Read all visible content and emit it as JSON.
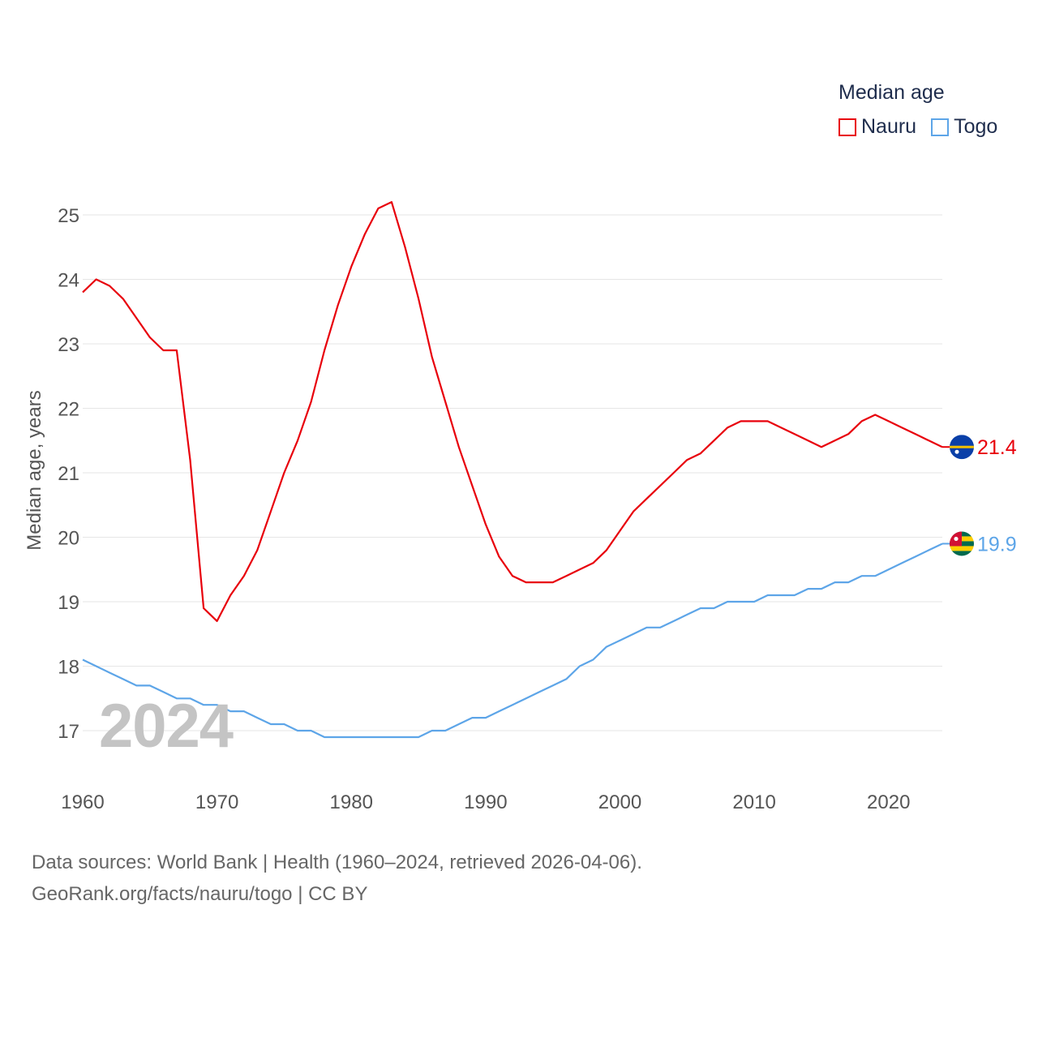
{
  "legend": {
    "title": "Median age",
    "items": [
      {
        "label": "Nauru",
        "color": "#e8000b"
      },
      {
        "label": "Togo",
        "color": "#5da5e8"
      }
    ]
  },
  "watermark_year": "2024",
  "footer": {
    "line1": "Data sources: World Bank | Health (1960–2024, retrieved 2026-04-06).",
    "line2": "GeoRank.org/facts/nauru/togo | CC BY"
  },
  "chart_data": {
    "type": "line",
    "title": "Median age",
    "xlabel": "",
    "ylabel": "Median age, years",
    "xlim": [
      1960,
      2024
    ],
    "ylim": [
      16.2,
      25.6
    ],
    "x_ticks": [
      1960,
      1970,
      1980,
      1990,
      2000,
      2010,
      2020
    ],
    "y_ticks": [
      17,
      18,
      19,
      20,
      21,
      22,
      23,
      24,
      25
    ],
    "grid": true,
    "legend_position": "top-right",
    "x": [
      1960,
      1961,
      1962,
      1963,
      1964,
      1965,
      1966,
      1967,
      1968,
      1969,
      1970,
      1971,
      1972,
      1973,
      1974,
      1975,
      1976,
      1977,
      1978,
      1979,
      1980,
      1981,
      1982,
      1983,
      1984,
      1985,
      1986,
      1987,
      1988,
      1989,
      1990,
      1991,
      1992,
      1993,
      1994,
      1995,
      1996,
      1997,
      1998,
      1999,
      2000,
      2001,
      2002,
      2003,
      2004,
      2005,
      2006,
      2007,
      2008,
      2009,
      2010,
      2011,
      2012,
      2013,
      2014,
      2015,
      2016,
      2017,
      2018,
      2019,
      2020,
      2021,
      2022,
      2023,
      2024
    ],
    "series": [
      {
        "name": "Nauru",
        "color": "#e8000b",
        "end_label": "21.4",
        "flag": "nauru-flag",
        "values": [
          23.8,
          24.0,
          23.9,
          23.7,
          23.4,
          23.1,
          22.9,
          22.9,
          21.2,
          18.9,
          18.7,
          19.1,
          19.4,
          19.8,
          20.4,
          21.0,
          21.5,
          22.1,
          22.9,
          23.6,
          24.2,
          24.7,
          25.1,
          25.2,
          24.5,
          23.7,
          22.8,
          22.1,
          21.4,
          20.8,
          20.2,
          19.7,
          19.4,
          19.3,
          19.3,
          19.3,
          19.4,
          19.5,
          19.6,
          19.8,
          20.1,
          20.4,
          20.6,
          20.8,
          21.0,
          21.2,
          21.3,
          21.5,
          21.7,
          21.8,
          21.8,
          21.8,
          21.7,
          21.6,
          21.5,
          21.4,
          21.5,
          21.6,
          21.8,
          21.9,
          21.8,
          21.7,
          21.6,
          21.5,
          21.4
        ]
      },
      {
        "name": "Togo",
        "color": "#5da5e8",
        "end_label": "19.9",
        "flag": "togo-flag",
        "values": [
          18.1,
          18.0,
          17.9,
          17.8,
          17.7,
          17.7,
          17.6,
          17.5,
          17.5,
          17.4,
          17.4,
          17.3,
          17.3,
          17.2,
          17.1,
          17.1,
          17.0,
          17.0,
          16.9,
          16.9,
          16.9,
          16.9,
          16.9,
          16.9,
          16.9,
          16.9,
          17.0,
          17.0,
          17.1,
          17.2,
          17.2,
          17.3,
          17.4,
          17.5,
          17.6,
          17.7,
          17.8,
          18.0,
          18.1,
          18.3,
          18.4,
          18.5,
          18.6,
          18.6,
          18.7,
          18.8,
          18.9,
          18.9,
          19.0,
          19.0,
          19.0,
          19.1,
          19.1,
          19.1,
          19.2,
          19.2,
          19.3,
          19.3,
          19.4,
          19.4,
          19.5,
          19.6,
          19.7,
          19.8,
          19.9
        ]
      }
    ]
  }
}
